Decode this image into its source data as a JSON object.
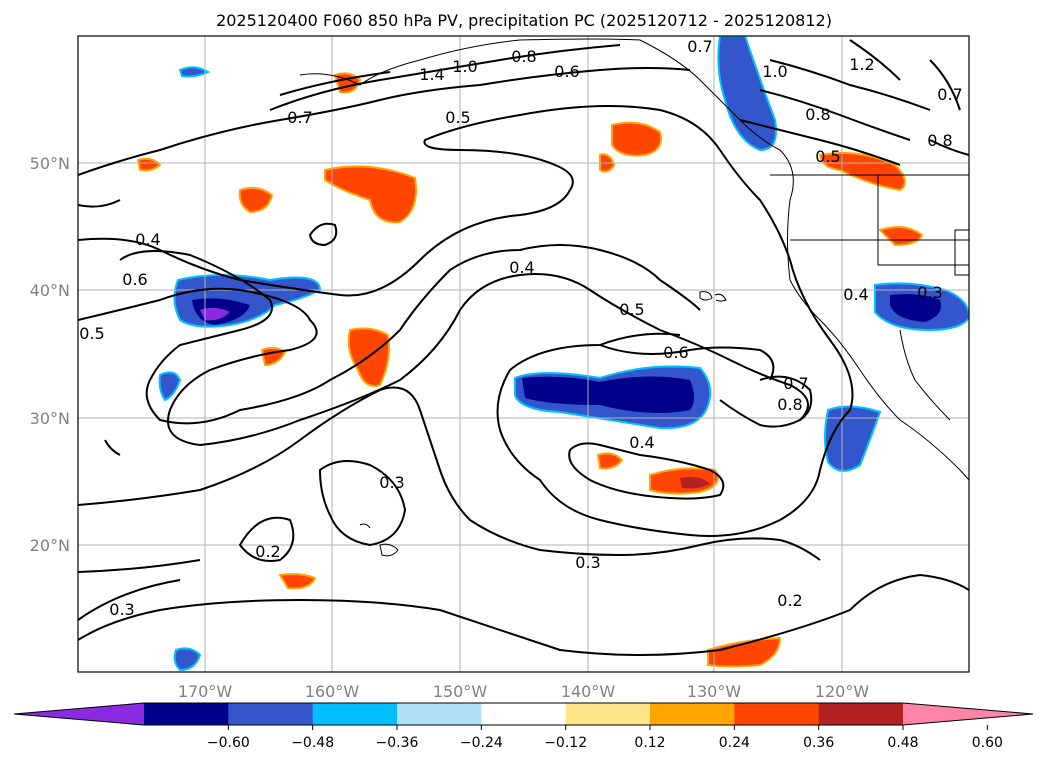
{
  "title": "2025120400 F060 850 hPa PV, precipitation PC (2025120712 - 2025120812)",
  "lon_labels": [
    "170°W",
    "160°W",
    "150°W",
    "140°W",
    "130°W",
    "120°W"
  ],
  "lat_labels": [
    "50°N",
    "40°N",
    "30°N",
    "20°N"
  ],
  "colorbar": {
    "colors": [
      "#8a2be2",
      "#00008b",
      "#3356cc",
      "#00bfff",
      "#aee0fa",
      "#ffffff",
      "#fde68a",
      "#ffa500",
      "#ff4500",
      "#b22222",
      "#ff85a8"
    ],
    "ticks": [
      "−0.60",
      "−0.48",
      "−0.36",
      "−0.24",
      "−0.12",
      "0.12",
      "0.24",
      "0.36",
      "0.48",
      "0.60"
    ]
  },
  "contour_labels": [
    "0.7",
    "1.4",
    "1.0",
    "0.8",
    "0.6",
    "0.5",
    "0.7",
    "1.0",
    "0.8",
    "1.2",
    "0.7",
    "0.8",
    "0.5",
    "0.4",
    "0.6",
    "0.5",
    "0.4",
    "0.5",
    "0.6",
    "0.7",
    "0.8",
    "0.4",
    "0.4",
    "0.3",
    "0.3",
    "0.2",
    "0.3",
    "0.2",
    "0.3"
  ]
}
